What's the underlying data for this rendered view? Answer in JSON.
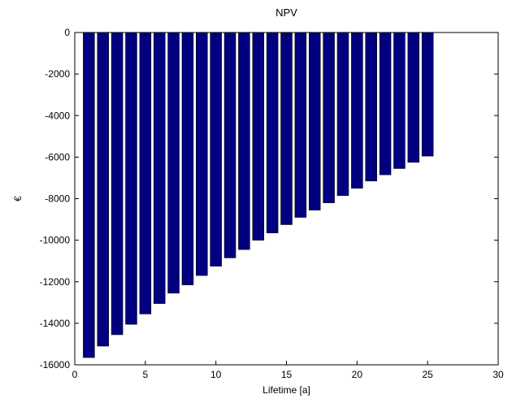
{
  "chart_data": {
    "type": "bar",
    "title": "NPV",
    "xlabel": "Lifetime [a]",
    "ylabel": "€",
    "xlim": [
      0,
      30
    ],
    "ylim": [
      -16000,
      0
    ],
    "xticks": [
      0,
      5,
      10,
      15,
      20,
      25,
      30
    ],
    "yticks": [
      0,
      -2000,
      -4000,
      -6000,
      -8000,
      -10000,
      -12000,
      -14000,
      -16000
    ],
    "grid": false,
    "bar_color": "#000080",
    "x": [
      1,
      2,
      3,
      4,
      5,
      6,
      7,
      8,
      9,
      10,
      11,
      12,
      13,
      14,
      15,
      16,
      17,
      18,
      19,
      20,
      21,
      22,
      23,
      24,
      25
    ],
    "values": [
      -15650,
      -15100,
      -14550,
      -14050,
      -13550,
      -13050,
      -12550,
      -12150,
      -11700,
      -11250,
      -10850,
      -10450,
      -10000,
      -9650,
      -9250,
      -8900,
      -8550,
      -8200,
      -7850,
      -7500,
      -7150,
      -6850,
      -6550,
      -6250,
      -5950
    ]
  }
}
